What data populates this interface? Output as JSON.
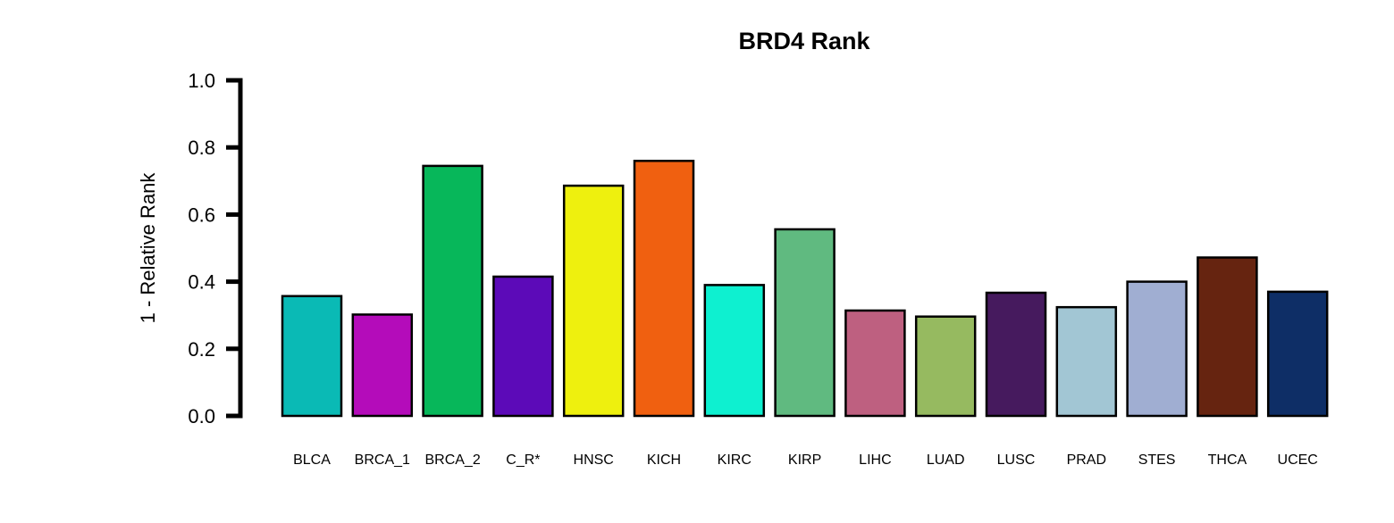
{
  "chart_data": {
    "type": "bar",
    "title": "BRD4 Rank",
    "ylabel": "1 - Relative Rank",
    "xlabel": "",
    "ylim": [
      0,
      1
    ],
    "yticks": [
      "0.0",
      "0.2",
      "0.4",
      "0.6",
      "0.8",
      "1.0"
    ],
    "ytick_values": [
      0,
      0.2,
      0.4,
      0.6,
      0.8,
      1.0
    ],
    "grid": false,
    "legend": "none",
    "categories": [
      "BLCA",
      "BRCA_1",
      "BRCA_2",
      "C_R*",
      "HNSC",
      "KICH",
      "KIRC",
      "KIRP",
      "LIHC",
      "LUAD",
      "LUSC",
      "PRAD",
      "STES",
      "THCA",
      "UCEC"
    ],
    "values": [
      0.357,
      0.302,
      0.745,
      0.415,
      0.686,
      0.76,
      0.39,
      0.556,
      0.314,
      0.296,
      0.367,
      0.324,
      0.4,
      0.472,
      0.37
    ],
    "colors": [
      "#0ABAB5",
      "#B40CBA",
      "#07B75A",
      "#5C0AB8",
      "#EEF00E",
      "#F06010",
      "#0EF0D0",
      "#60BA80",
      "#BE6080",
      "#96BA60",
      "#461A5E",
      "#A2C6D4",
      "#A0AED2",
      "#662410",
      "#0E2E66"
    ]
  }
}
